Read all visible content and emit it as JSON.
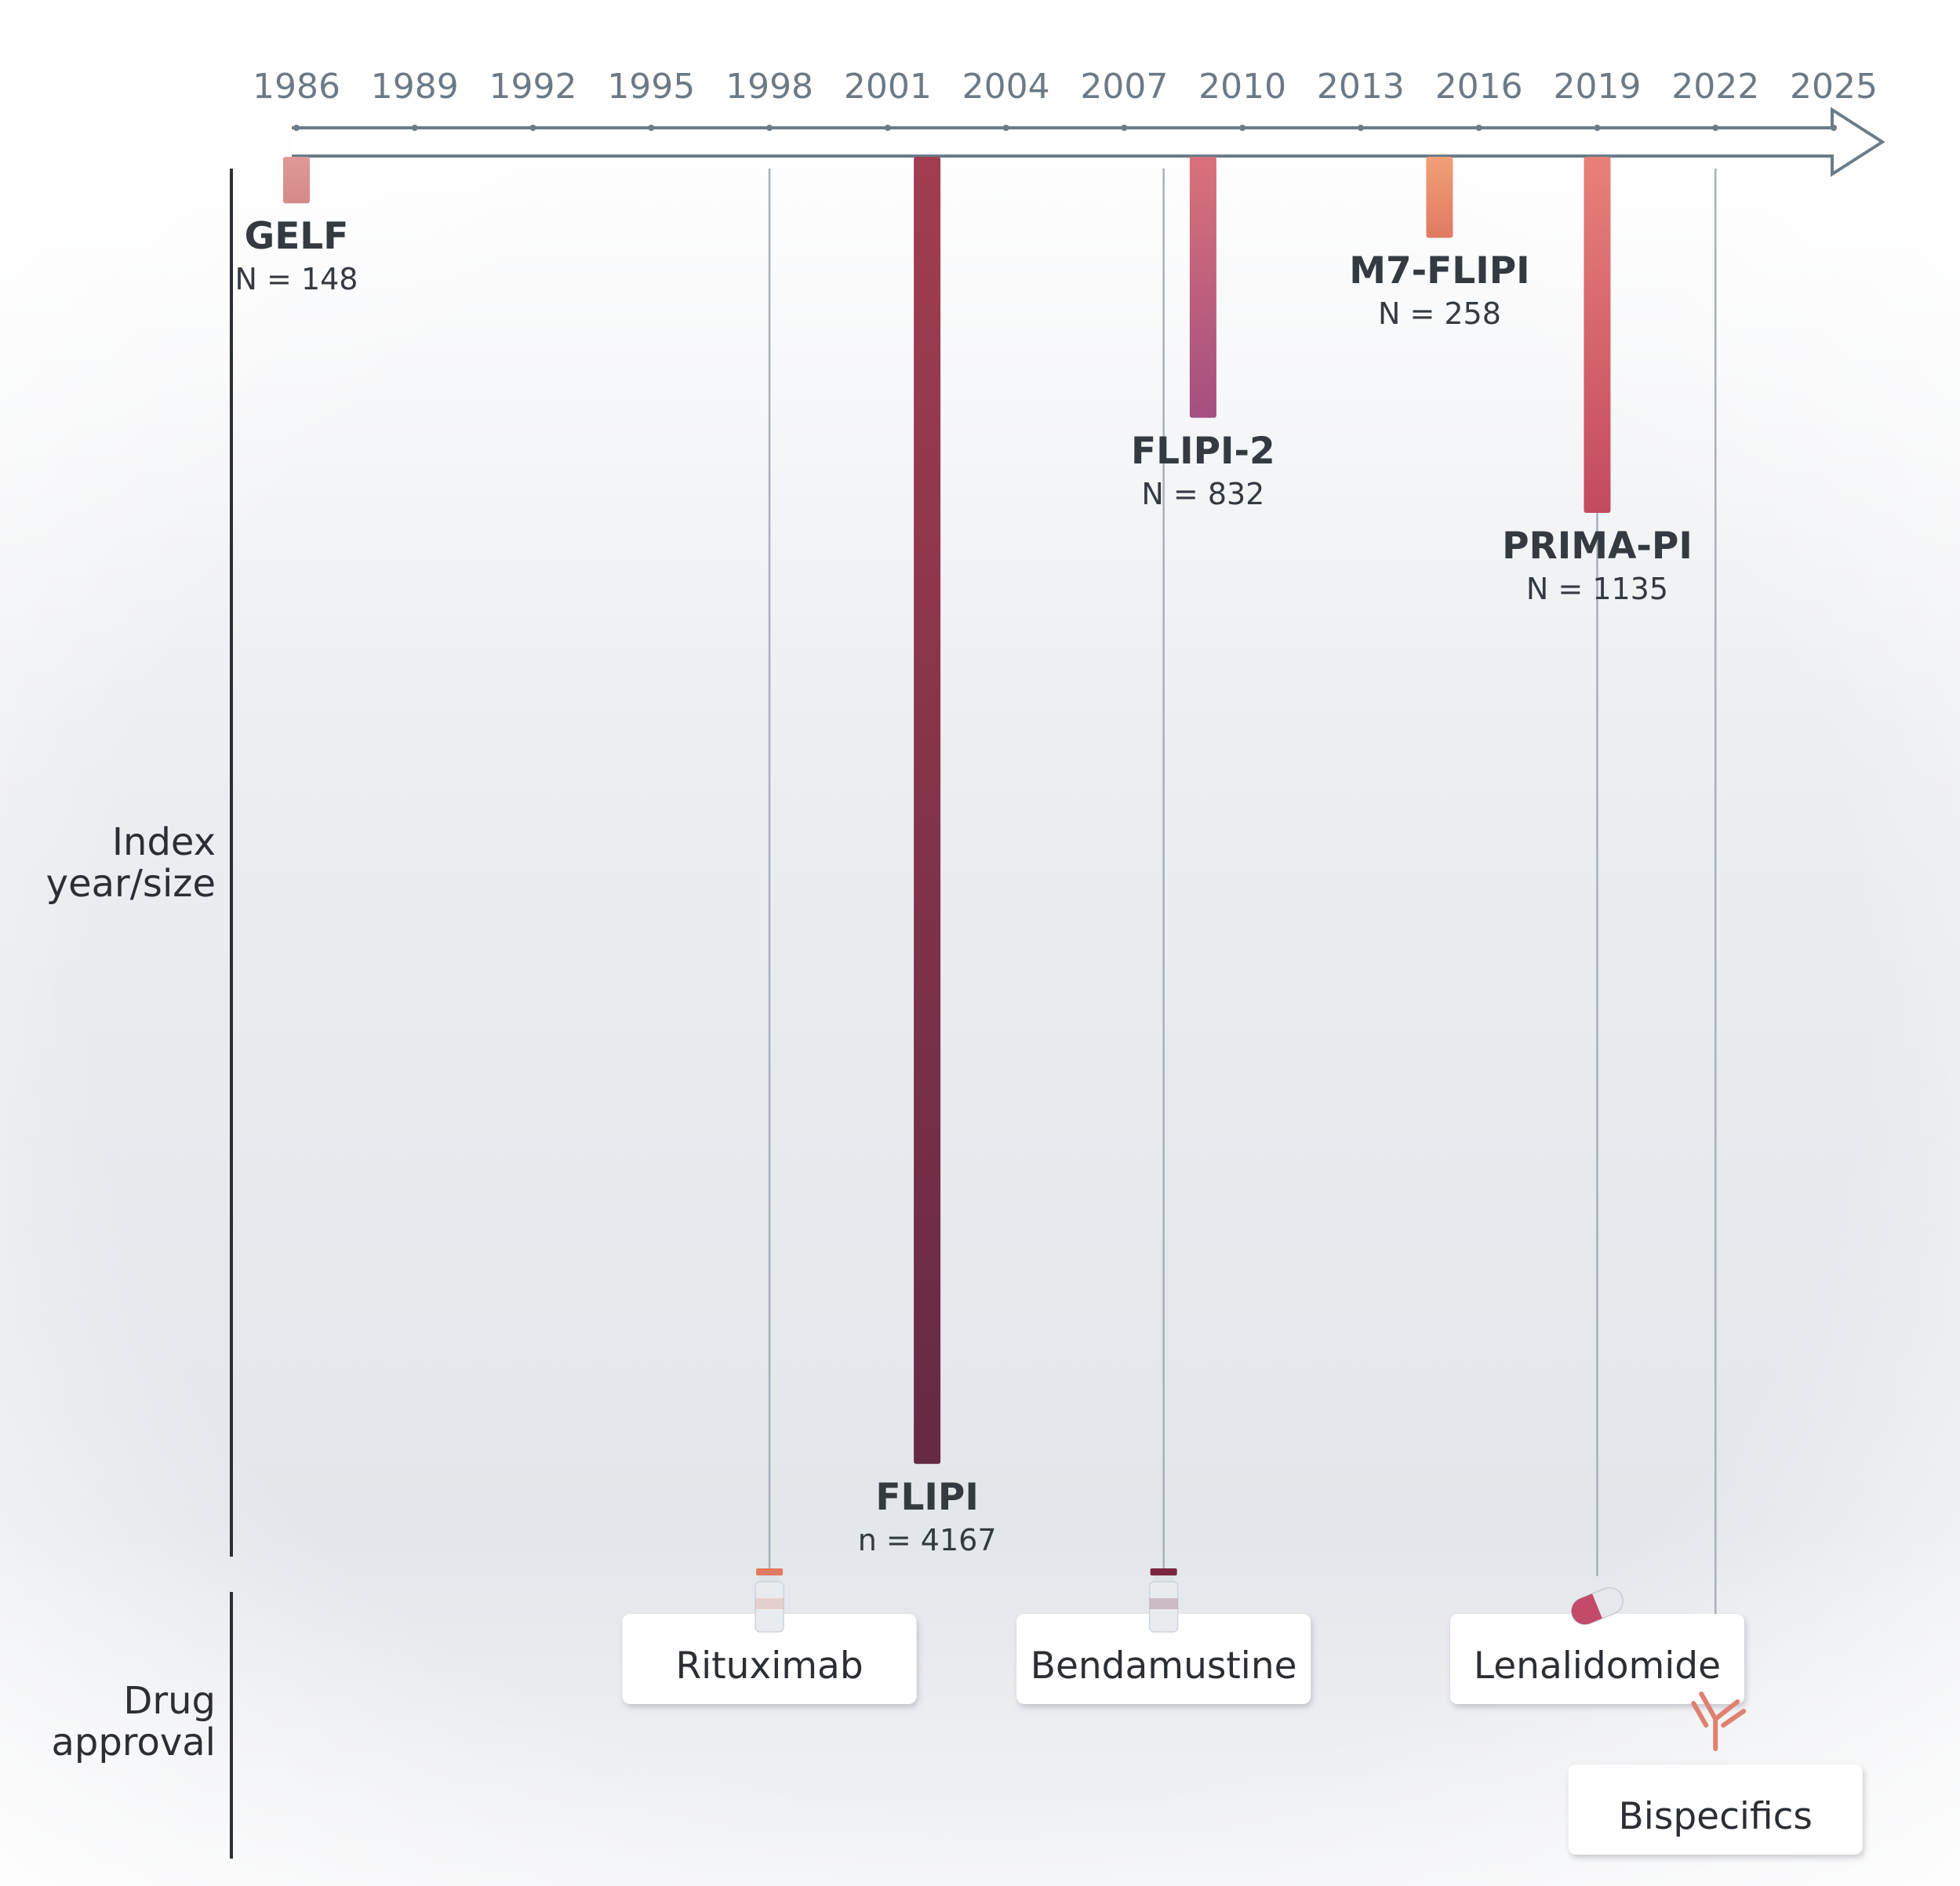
{
  "chart_data": {
    "type": "timeline",
    "x_axis": {
      "ticks": [
        1986,
        1989,
        1992,
        1995,
        1998,
        2001,
        2004,
        2007,
        2010,
        2013,
        2016,
        2019,
        2022,
        2025
      ],
      "range": [
        1986,
        2025
      ]
    },
    "row_labels": {
      "index": [
        "Index",
        "year/size"
      ],
      "drug": [
        "Drug",
        "approval"
      ]
    },
    "indices": [
      {
        "name": "GELF",
        "year": 1986,
        "n": 148,
        "n_label": "N = 148",
        "color_top": "#df9a96",
        "color_bottom": "#d58a88",
        "label_side": "below"
      },
      {
        "name": "FLIPI",
        "year": 2002,
        "n": 4167,
        "n_label": "n = 4167",
        "color_top": "#a23d4f",
        "color_bottom": "#652a44",
        "label_side": "below"
      },
      {
        "name": "FLIPI-2",
        "year": 2009,
        "n": 832,
        "n_label": "N = 832",
        "color_top": "#d9727a",
        "color_bottom": "#a44f80",
        "label_side": "below"
      },
      {
        "name": "M7-FLIPI",
        "year": 2015,
        "n": 258,
        "n_label": "N = 258",
        "color_top": "#f0a078",
        "color_bottom": "#e07a62",
        "label_side": "below"
      },
      {
        "name": "PRIMA-PI",
        "year": 2019,
        "n": 1135,
        "n_label": "N = 1135",
        "color_top": "#e88078",
        "color_bottom": "#c44a60",
        "label_side": "below"
      }
    ],
    "drugs": [
      {
        "name": "Rituximab",
        "year": 1998,
        "icon": "vial-icon",
        "accent": "#e07a62"
      },
      {
        "name": "Bendamustine",
        "year": 2008,
        "icon": "vial-icon",
        "accent": "#7a2640"
      },
      {
        "name": "Lenalidomide",
        "year": 2019,
        "icon": "capsule-icon",
        "accent": "#c44a6a"
      },
      {
        "name": "Bispecifics",
        "year": 2022,
        "icon": "antibody-icon",
        "accent": "#e08070"
      }
    ]
  }
}
